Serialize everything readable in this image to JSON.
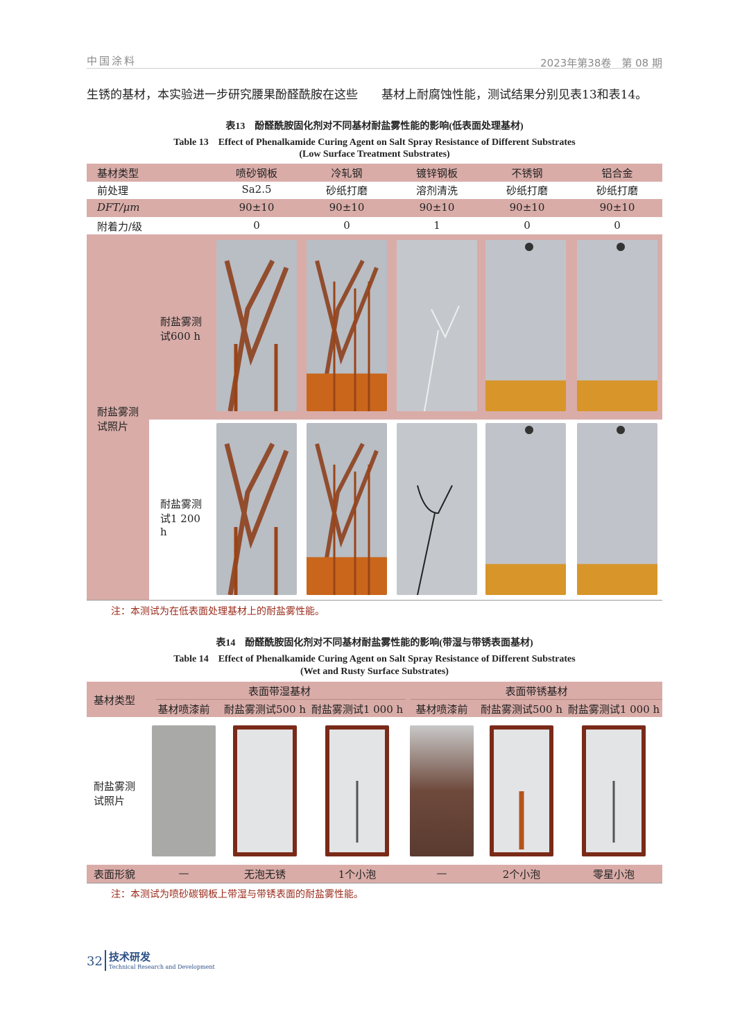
{
  "header": {
    "journal": "中国涂料",
    "issue": "2023年第38卷　第 08 期"
  },
  "body_text": "生锈的基材，本实验进一步研究腰果酚醛酰胺在这些　　基材上耐腐蚀性能，测试结果分别见表13和表14。",
  "table13": {
    "caption_cn": "表13　酚醛酰胺固化剂对不同基材耐盐雾性能的影响(低表面处理基材)",
    "caption_en": "Table 13　Effect of Phenalkamide Curing Agent on Salt Spray Resistance of Different Substrates",
    "caption_en2": "(Low Surface Treatment Substrates)",
    "rows": [
      {
        "label": "基材类型",
        "values": [
          "喷砂钢板",
          "冷轧钢",
          "镀锌钢板",
          "不锈钢",
          "铝合金"
        ]
      },
      {
        "label": "前处理",
        "values": [
          "Sa2.5",
          "砂纸打磨",
          "溶剂清洗",
          "砂纸打磨",
          "砂纸打磨"
        ]
      },
      {
        "label": "DFT/μm",
        "values": [
          "90±10",
          "90±10",
          "90±10",
          "90±10",
          "90±10"
        ]
      },
      {
        "label": "附着力/级",
        "values": [
          "0",
          "0",
          "1",
          "0",
          "0"
        ]
      }
    ],
    "photo_label": "耐盐雾测试照片",
    "photo_rows": [
      {
        "label": "耐盐雾测试600 h"
      },
      {
        "label": "耐盐雾测试1 200 h"
      }
    ],
    "note": "注：本测试为在低表面处理基材上的耐盐雾性能。"
  },
  "table14": {
    "caption_cn": "表14　酚醛酰胺固化剂对不同基材耐盐雾性能的影响(带湿与带锈表面基材)",
    "caption_en": "Table 14　Effect of Phenalkamide Curing Agent on Salt Spray Resistance of Different Substrates",
    "caption_en2": "(Wet and Rusty Surface Substrates)",
    "row_header": "基材类型",
    "groups": [
      "表面带湿基材",
      "表面带锈基材"
    ],
    "subheaders": [
      "基材喷漆前",
      "耐盐雾测试500 h",
      "耐盐雾测试1 000 h",
      "基材喷漆前",
      "耐盐雾测试500 h",
      "耐盐雾测试1 000 h"
    ],
    "photo_label": "耐盐雾测试照片",
    "surface_label": "表面形貌",
    "surface": [
      "—",
      "无泡无锈",
      "1个小泡",
      "—",
      "2个小泡",
      "零星小泡"
    ],
    "note": "注：本测试为喷砂碳钢板上带湿与带锈表面的耐盐雾性能。"
  },
  "footer": {
    "page": "32",
    "section_cn": "技术研发",
    "section_en": "Technical Research and Development"
  },
  "colors": {
    "table_band": "#d9aca8",
    "note": "#9b2a1a",
    "footer": "#2b4f86",
    "rust": "#b5541c",
    "tape": "#d99a2b"
  }
}
